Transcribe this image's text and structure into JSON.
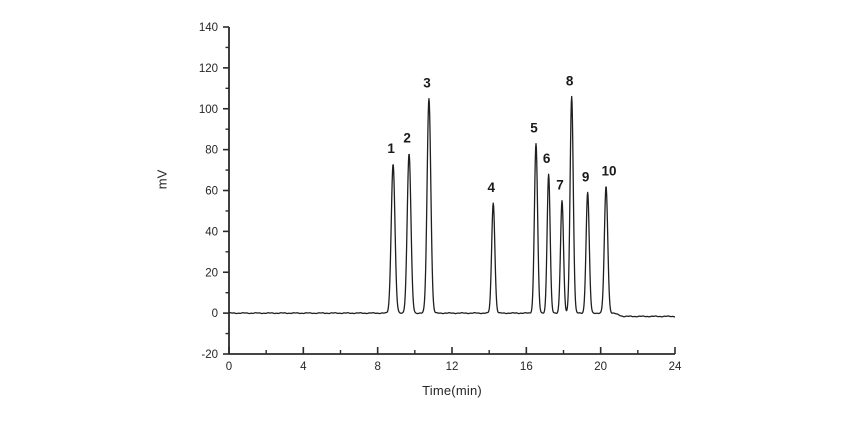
{
  "chart_data": {
    "type": "line",
    "title": "",
    "subtitle": "",
    "xlabel": "Time(min)",
    "ylabel": "mV",
    "xlim": [
      0,
      24
    ],
    "ylim": [
      -20,
      140
    ],
    "x_major_ticks": [
      0,
      4,
      8,
      12,
      16,
      20,
      24
    ],
    "x_minor_ticks": [
      2,
      6,
      10,
      14,
      18,
      22
    ],
    "y_major_ticks": [
      -20,
      0,
      20,
      40,
      60,
      80,
      100,
      120,
      140
    ],
    "y_minor_ticks": [
      -10,
      10,
      30,
      50,
      70,
      90,
      110,
      130
    ],
    "grid": false,
    "legend": "none",
    "series_name": "chromatogram-trace",
    "baseline_mv": 0,
    "baseline_noise_mv": 0.3,
    "post_run_baseline_mv": -1.6,
    "post_run_start_min": 20.6,
    "peaks": [
      {
        "label": "1",
        "time_min": 8.83,
        "height_mv": 73,
        "sigma_min": 0.1
      },
      {
        "label": "2",
        "time_min": 9.69,
        "height_mv": 78,
        "sigma_min": 0.1
      },
      {
        "label": "3",
        "time_min": 10.76,
        "height_mv": 105,
        "sigma_min": 0.1
      },
      {
        "label": "4",
        "time_min": 14.22,
        "height_mv": 54,
        "sigma_min": 0.085
      },
      {
        "label": "5",
        "time_min": 16.52,
        "height_mv": 83,
        "sigma_min": 0.085
      },
      {
        "label": "6",
        "time_min": 17.2,
        "height_mv": 68,
        "sigma_min": 0.08
      },
      {
        "label": "7",
        "time_min": 17.92,
        "height_mv": 55,
        "sigma_min": 0.08
      },
      {
        "label": "8",
        "time_min": 18.44,
        "height_mv": 106,
        "sigma_min": 0.085
      },
      {
        "label": "9",
        "time_min": 19.3,
        "height_mv": 59,
        "sigma_min": 0.085
      },
      {
        "label": "10",
        "time_min": 20.29,
        "height_mv": 62,
        "sigma_min": 0.09
      }
    ],
    "colors": {
      "trace": "#1f1f1f",
      "axis": "#2b2b2b",
      "tick_label": "#262626",
      "peak_label": "#1a1a1a",
      "background": "#ffffff"
    }
  }
}
